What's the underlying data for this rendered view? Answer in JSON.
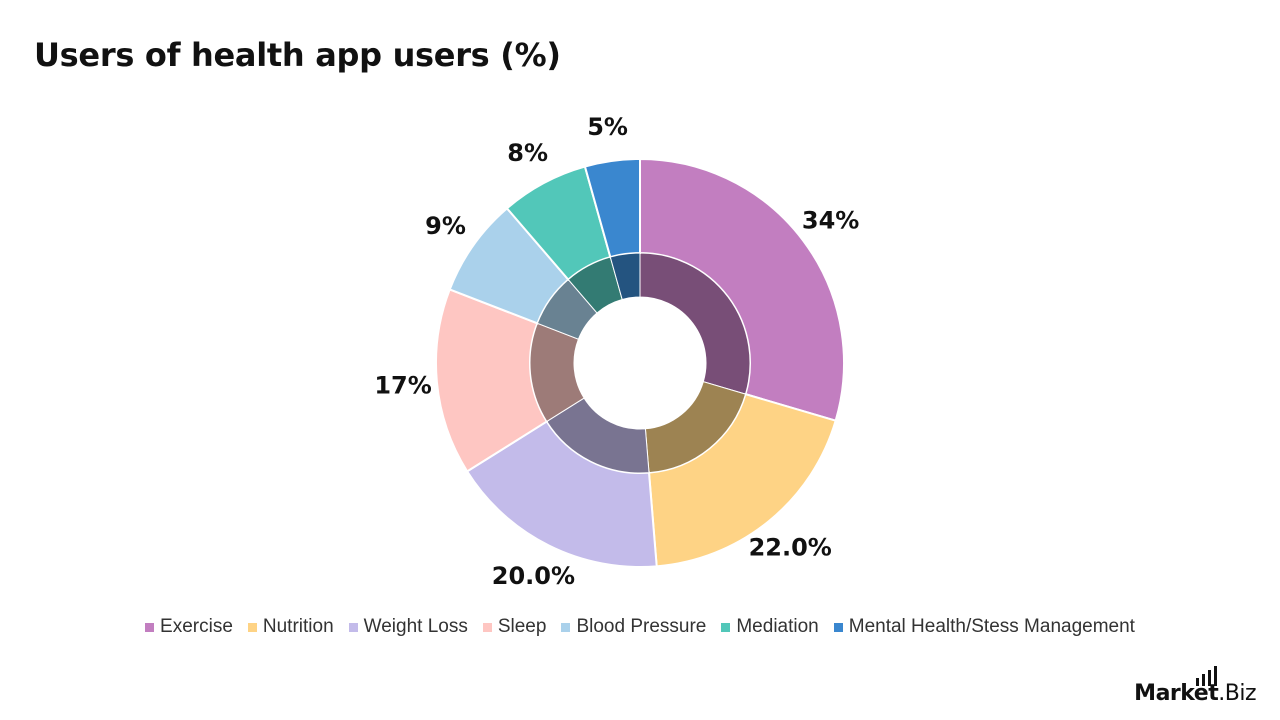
{
  "title": "Users of health app users (%)",
  "chart_data": {
    "type": "pie",
    "title": "Users of health app users (%)",
    "categories": [
      "Exercise",
      "Nutrition",
      "Weight Loss",
      "Sleep",
      "Blood Pressure",
      "Mediation",
      "Mental Health/Stess Management"
    ],
    "values": [
      34,
      22,
      20,
      17,
      9,
      8,
      5
    ],
    "value_labels": [
      "34%",
      "22.0%",
      "20.0%",
      "17%",
      "9%",
      "8%",
      "5%"
    ],
    "colors": [
      "#C27EC0",
      "#FED385",
      "#C3BBEA",
      "#FEC6C2",
      "#AAD1EB",
      "#52C7B9",
      "#3A87CF"
    ],
    "legend_position": "bottom",
    "style": "donut with darker inner ring"
  },
  "brand": {
    "name": "Market",
    "suffix": ".Biz"
  }
}
